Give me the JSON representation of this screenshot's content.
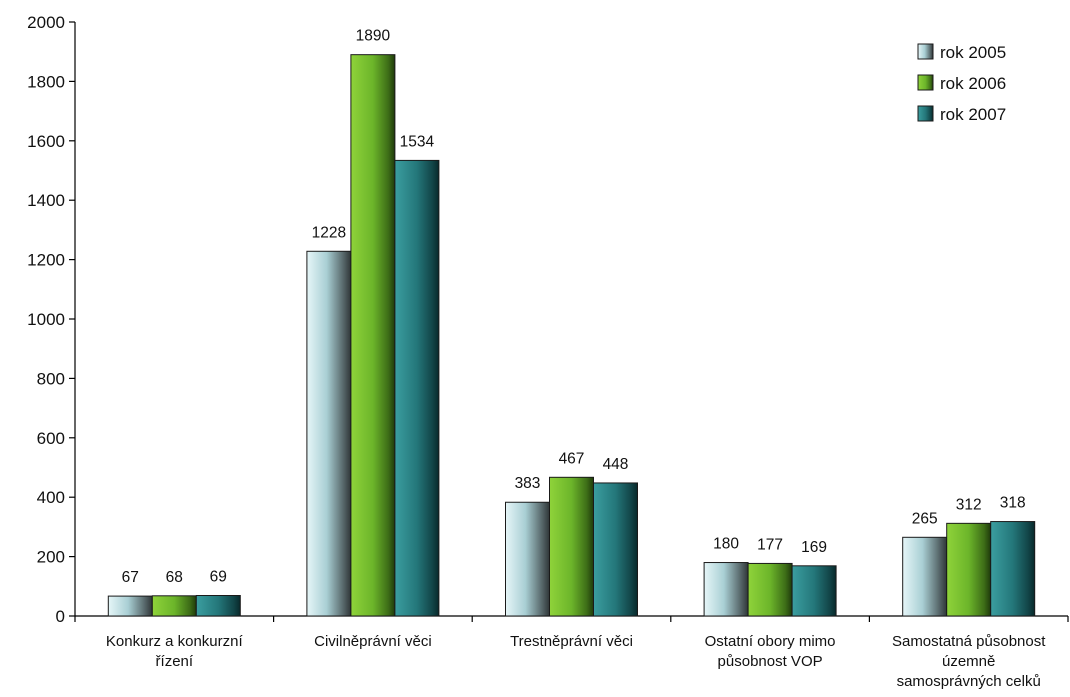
{
  "chart_data": {
    "type": "bar",
    "title": "",
    "xlabel": "",
    "ylabel": "",
    "ylim": [
      0,
      2000
    ],
    "yticks": [
      0,
      200,
      400,
      600,
      800,
      1000,
      1200,
      1400,
      1600,
      1800,
      2000
    ],
    "grid": false,
    "legend_position": "top-right",
    "categories": [
      [
        "Konkurz a konkurzní",
        "řízení"
      ],
      [
        "Civilněprávní věci"
      ],
      [
        "Trestněprávní věci"
      ],
      [
        "Ostatní obory mimo",
        "působnost VOP"
      ],
      [
        "Samostatná působnost",
        "územně",
        "samosprávných celků"
      ]
    ],
    "series": [
      {
        "name": "rok 2005",
        "values": [
          67,
          1228,
          383,
          180,
          265
        ],
        "color": "#b8dde3"
      },
      {
        "name": "rok 2006",
        "values": [
          68,
          1890,
          467,
          177,
          312
        ],
        "color": "#7dc230"
      },
      {
        "name": "rok 2007",
        "values": [
          69,
          1534,
          448,
          169,
          318
        ],
        "color": "#2a7f82"
      }
    ]
  }
}
